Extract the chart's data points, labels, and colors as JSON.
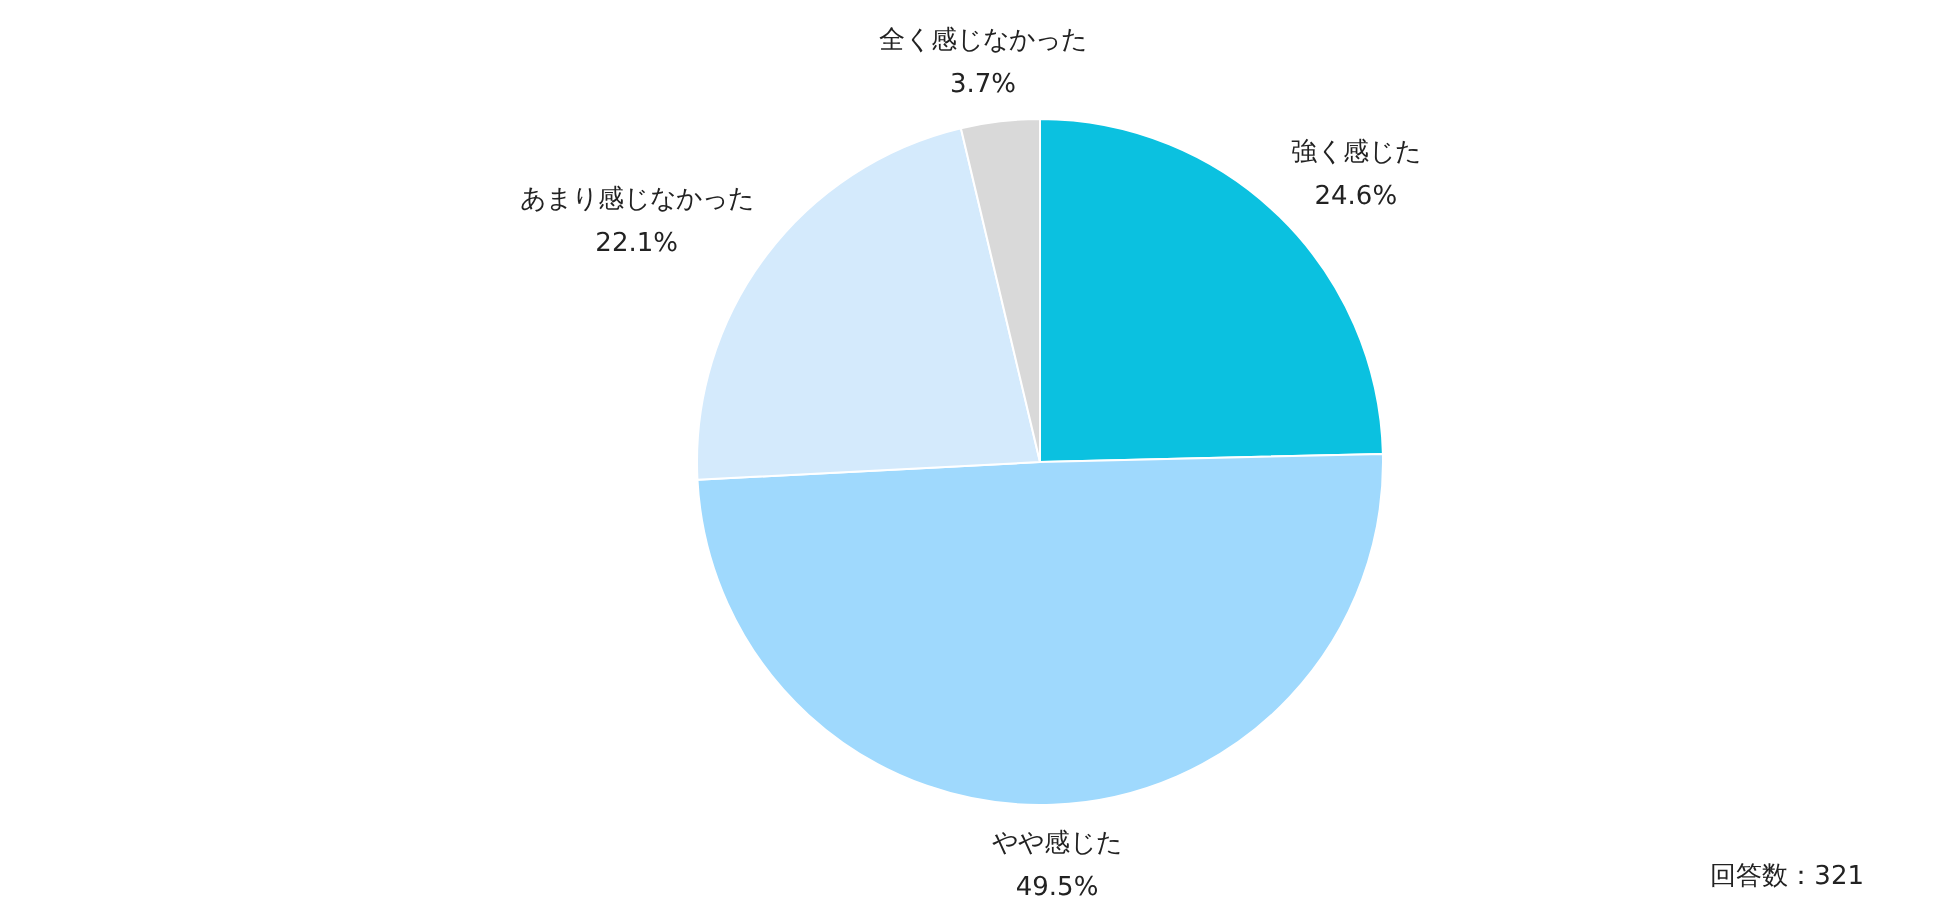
{
  "chart_data": {
    "type": "pie",
    "categories": [
      "強く感じた",
      "やや感じた",
      "あまり感じなかった",
      "全く感じなかった"
    ],
    "values": [
      24.6,
      49.5,
      22.1,
      3.7
    ],
    "value_labels": [
      "24.6%",
      "49.5%",
      "22.1%",
      "3.7%"
    ],
    "colors": [
      "#0bc1e0",
      "#9fd9fd",
      "#d4eafc",
      "#d9d9d9"
    ],
    "legend": false,
    "annotations": [
      "回答数：321"
    ]
  }
}
